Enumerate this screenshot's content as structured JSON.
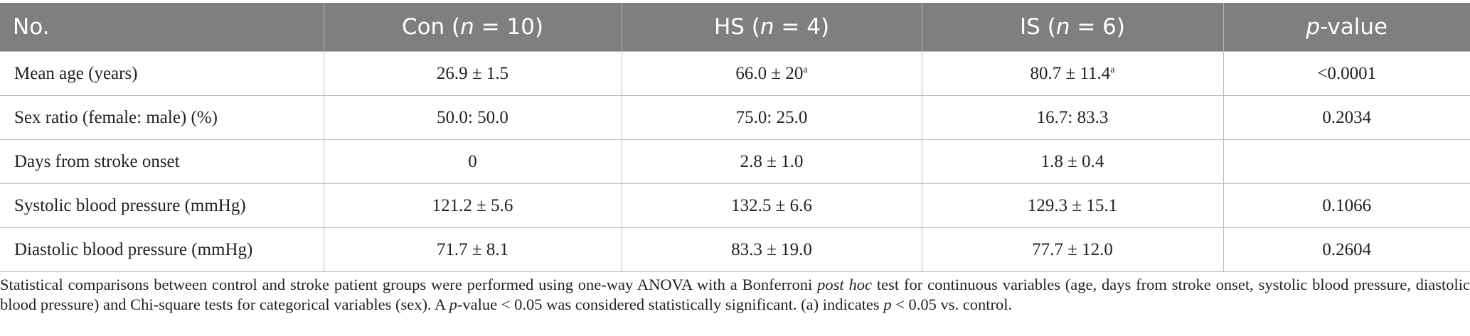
{
  "table": {
    "header": [
      [
        {
          "text": "No."
        }
      ],
      [
        {
          "text": "Con ("
        },
        {
          "text": "n",
          "italic": true
        },
        {
          "text": " = 10)"
        }
      ],
      [
        {
          "text": "HS ("
        },
        {
          "text": "n",
          "italic": true
        },
        {
          "text": " = 4)"
        }
      ],
      [
        {
          "text": "IS ("
        },
        {
          "text": "n",
          "italic": true
        },
        {
          "text": " = 6)"
        }
      ],
      [
        {
          "text": "p",
          "italic": true
        },
        {
          "text": "-value"
        }
      ]
    ],
    "rows": [
      [
        {
          "text": "Mean age (years)"
        },
        {
          "text": "26.9 ± 1.5"
        },
        {
          "text": "66.0 ± 20",
          "sup": "a"
        },
        {
          "text": "80.7 ± 11.4",
          "sup": "a"
        },
        {
          "text": "<0.0001"
        }
      ],
      [
        {
          "text": "Sex ratio (female: male) (%)"
        },
        {
          "text": "50.0: 50.0"
        },
        {
          "text": "75.0: 25.0"
        },
        {
          "text": "16.7: 83.3"
        },
        {
          "text": "0.2034"
        }
      ],
      [
        {
          "text": "Days from stroke onset"
        },
        {
          "text": "0"
        },
        {
          "text": "2.8 ± 1.0"
        },
        {
          "text": "1.8 ± 0.4"
        },
        null
      ],
      [
        {
          "text": "Systolic blood pressure (mmHg)"
        },
        {
          "text": "121.2 ± 5.6"
        },
        {
          "text": "132.5 ± 6.6"
        },
        {
          "text": "129.3 ± 15.1"
        },
        {
          "text": "0.1066"
        }
      ],
      [
        {
          "text": "Diastolic blood pressure (mmHg)"
        },
        {
          "text": "71.7 ± 8.1"
        },
        {
          "text": "83.3 ± 19.0"
        },
        {
          "text": "77.7 ± 12.0"
        },
        {
          "text": "0.2604"
        }
      ]
    ]
  },
  "footnote": [
    {
      "text": "Statistical comparisons between control and stroke patient groups were performed using one-way ANOVA with a Bonferroni "
    },
    {
      "text": "post hoc",
      "italic": true
    },
    {
      "text": " test for continuous variables (age, days from stroke onset, systolic blood pressure, diastolic blood pressure) and Chi-square tests for categorical variables (sex). A "
    },
    {
      "text": "p",
      "italic": true
    },
    {
      "text": "-value < 0.05 was considered statistically significant. (a) indicates "
    },
    {
      "text": "p",
      "italic": true
    },
    {
      "text": " < 0.05 vs. control."
    }
  ]
}
